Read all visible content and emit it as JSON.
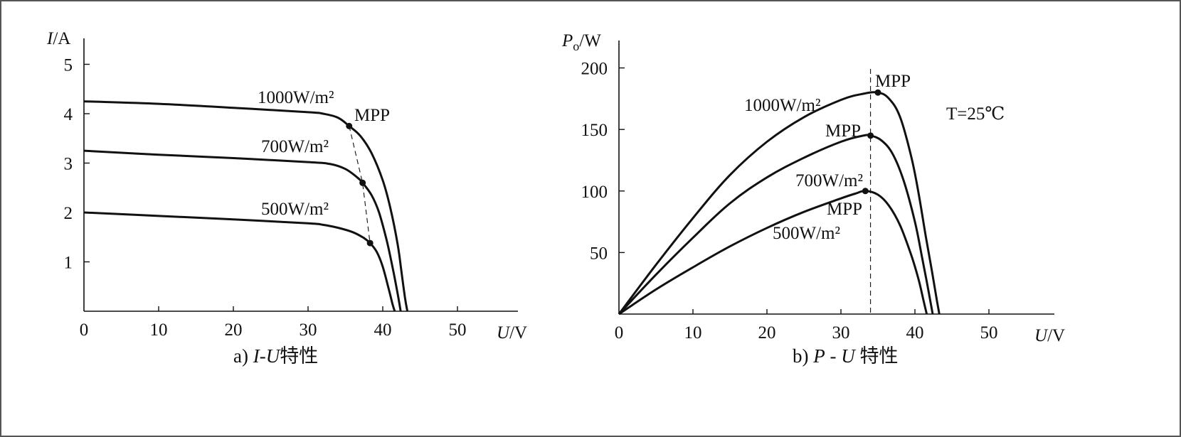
{
  "chart_data": [
    {
      "type": "line",
      "caption": "a) I-U特性",
      "ylabel": "I/A",
      "xlabel": "U/V",
      "xlim": [
        0,
        58
      ],
      "ylim": [
        0,
        5.5
      ],
      "xticks": [
        "0",
        "10",
        "20",
        "30",
        "40",
        "50"
      ],
      "yticks": [
        "1",
        "2",
        "3",
        "4",
        "5"
      ],
      "series": [
        {
          "name": "1000W/m2",
          "x": [
            0,
            10,
            20,
            30,
            32,
            34,
            35.5,
            37,
            38.5,
            40,
            41,
            42,
            42.5,
            43,
            43.3
          ],
          "y": [
            4.25,
            4.2,
            4.12,
            4.03,
            4.0,
            3.92,
            3.75,
            3.55,
            3.2,
            2.65,
            2.1,
            1.35,
            0.8,
            0.25,
            0
          ]
        },
        {
          "name": "700W/m2",
          "x": [
            0,
            10,
            20,
            30,
            33,
            35,
            36.5,
            37.3,
            38.5,
            39.5,
            40.5,
            41.3,
            42,
            42.4
          ],
          "y": [
            3.25,
            3.17,
            3.1,
            3.02,
            2.98,
            2.88,
            2.72,
            2.6,
            2.35,
            2.0,
            1.45,
            0.9,
            0.35,
            0
          ]
        },
        {
          "name": "500W/m2",
          "x": [
            0,
            10,
            20,
            30,
            32,
            34,
            36,
            37.5,
            38.3,
            39.2,
            40,
            40.8,
            41.3,
            41.6
          ],
          "y": [
            2.0,
            1.93,
            1.86,
            1.78,
            1.75,
            1.69,
            1.6,
            1.48,
            1.38,
            1.2,
            0.9,
            0.45,
            0.15,
            0
          ]
        }
      ],
      "mpp_points": [
        {
          "x": 35.5,
          "y": 3.75
        },
        {
          "x": 37.3,
          "y": 2.6
        },
        {
          "x": 38.3,
          "y": 1.38
        }
      ],
      "annotations": [
        "1000W/m²",
        "700W/m²",
        "500W/m²",
        "MPP"
      ]
    },
    {
      "type": "line",
      "caption": "b) P-U特性",
      "ylabel": "Po/W",
      "xlabel": "U/V",
      "xlim": [
        0,
        58
      ],
      "ylim": [
        0,
        220
      ],
      "xticks": [
        "0",
        "10",
        "20",
        "30",
        "40",
        "50"
      ],
      "yticks": [
        "50",
        "100",
        "150",
        "200"
      ],
      "series": [
        {
          "name": "1000W/m2",
          "x": [
            0,
            5,
            10,
            15,
            20,
            25,
            30,
            33,
            35,
            36.5,
            38,
            39.5,
            40.5,
            41.5,
            42.3,
            43,
            43.3
          ],
          "y": [
            0,
            40,
            78,
            113,
            140,
            160,
            174,
            179,
            180,
            175,
            160,
            128,
            98,
            62,
            35,
            10,
            0
          ]
        },
        {
          "name": "700W/m2",
          "x": [
            0,
            5,
            10,
            15,
            20,
            25,
            30,
            33,
            34,
            35.5,
            37,
            38.5,
            40,
            41,
            41.8,
            42.4
          ],
          "y": [
            0,
            32,
            62,
            90,
            111,
            127,
            140,
            145,
            145,
            141,
            130,
            108,
            75,
            45,
            20,
            0
          ]
        },
        {
          "name": "500W/m2",
          "x": [
            0,
            5,
            10,
            15,
            20,
            25,
            30,
            32,
            33.3,
            35,
            36.5,
            38,
            39.5,
            40.5,
            41.2,
            41.6
          ],
          "y": [
            0,
            20,
            38,
            55,
            70,
            83,
            94,
            98,
            100,
            97,
            88,
            72,
            48,
            28,
            10,
            0
          ]
        }
      ],
      "mpp_points": [
        {
          "x": 35,
          "y": 180
        },
        {
          "x": 34,
          "y": 145
        },
        {
          "x": 33.3,
          "y": 100
        }
      ],
      "annotations": [
        "MPP",
        "1000W/m²",
        "MPP",
        "700W/m²",
        "MPP",
        "500W/m²",
        "T=25℃"
      ]
    }
  ]
}
